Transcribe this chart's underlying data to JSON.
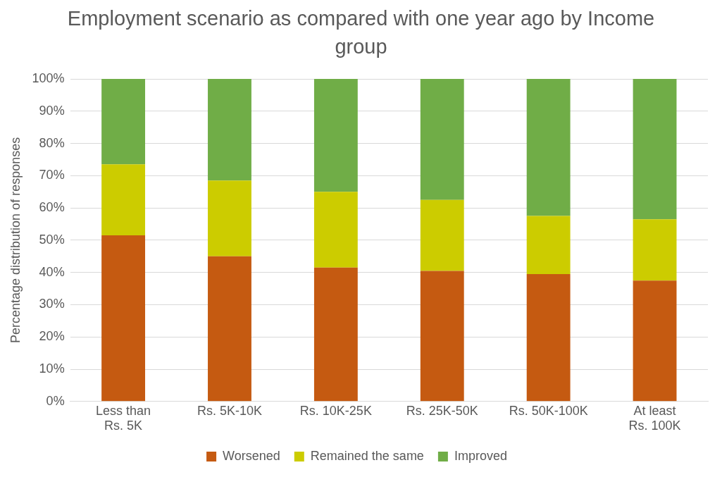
{
  "chart_data": {
    "type": "bar",
    "title": "Employment scenario as compared with one year ago by Income group",
    "ylabel": "Percentage distribution of responses",
    "categories": [
      "Less than\nRs. 5K",
      "Rs. 5K-10K",
      "Rs. 10K-25K",
      "Rs. 25K-50K",
      "Rs. 50K-100K",
      "At least\nRs. 100K"
    ],
    "series": [
      {
        "name": "Worsened",
        "color": "#c55a11",
        "values": [
          51.5,
          45,
          41.5,
          40.5,
          39.5,
          37.5
        ]
      },
      {
        "name": "Remained the same",
        "color": "#cccc00",
        "values": [
          22,
          23.5,
          23.5,
          22,
          18,
          19
        ]
      },
      {
        "name": "Improved",
        "color": "#70ad47",
        "values": [
          26.5,
          31.5,
          35,
          37.5,
          42.5,
          43.5
        ]
      }
    ],
    "stacked": true,
    "ylim": [
      0,
      100
    ],
    "yticks": [
      {
        "value": 0,
        "label": "0%"
      },
      {
        "value": 10,
        "label": "10%"
      },
      {
        "value": 20,
        "label": "20%"
      },
      {
        "value": 30,
        "label": "30%"
      },
      {
        "value": 40,
        "label": "40%"
      },
      {
        "value": 50,
        "label": "50%"
      },
      {
        "value": 60,
        "label": "60%"
      },
      {
        "value": 70,
        "label": "70%"
      },
      {
        "value": 80,
        "label": "80%"
      },
      {
        "value": 90,
        "label": "90%"
      },
      {
        "value": 100,
        "label": "100%"
      }
    ],
    "grid": "y",
    "legend": "bottom"
  }
}
